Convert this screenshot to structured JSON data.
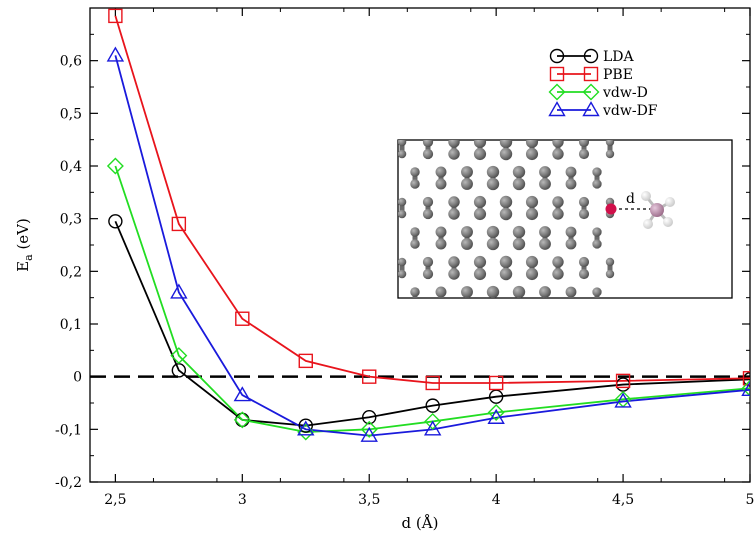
{
  "chart_data": {
    "type": "line",
    "title": "",
    "xlabel": "d (Å)",
    "ylabel_main": "E",
    "ylabel_sub": "a",
    "ylabel_unit": " (eV)",
    "xlim": [
      2.4,
      5.0
    ],
    "ylim": [
      -0.2,
      0.7
    ],
    "x_ticks": [
      2.5,
      3,
      3.5,
      4,
      4.5,
      5
    ],
    "x_tick_labels": [
      "2,5",
      "3",
      "3,5",
      "4",
      "4,5",
      "5"
    ],
    "y_ticks": [
      -0.2,
      -0.1,
      0,
      0.1,
      0.2,
      0.3,
      0.4,
      0.5,
      0.6
    ],
    "y_tick_labels": [
      "-0,2",
      "-0,1",
      "0",
      "0,1",
      "0,2",
      "0,3",
      "0,4",
      "0,5",
      "0,6"
    ],
    "reference_line": {
      "y": 0,
      "style": "dashed",
      "color": "#000000"
    },
    "grid": false,
    "legend_position": "top-right",
    "series": [
      {
        "name": "LDA",
        "color": "#000000",
        "marker": "circle",
        "x": [
          2.5,
          2.75,
          3.0,
          3.25,
          3.5,
          3.75,
          4.0,
          4.5,
          5.0
        ],
        "y": [
          0.295,
          0.012,
          -0.082,
          -0.093,
          -0.077,
          -0.055,
          -0.038,
          -0.015,
          -0.005
        ]
      },
      {
        "name": "PBE",
        "color": "#e8141c",
        "marker": "square",
        "x": [
          2.5,
          2.75,
          3.0,
          3.25,
          3.5,
          3.75,
          4.0,
          4.5,
          5.0
        ],
        "y": [
          0.685,
          0.29,
          0.11,
          0.03,
          0.0,
          -0.012,
          -0.012,
          -0.008,
          -0.003
        ]
      },
      {
        "name": "vdw-D",
        "color": "#22dd22",
        "marker": "diamond",
        "x": [
          2.5,
          2.75,
          3.0,
          3.25,
          3.5,
          3.75,
          4.0,
          4.5,
          5.0
        ],
        "y": [
          0.4,
          0.04,
          -0.082,
          -0.105,
          -0.1,
          -0.085,
          -0.068,
          -0.043,
          -0.022
        ]
      },
      {
        "name": "vdw-DF",
        "color": "#1a1adc",
        "marker": "triangle",
        "x": [
          2.5,
          2.75,
          3.0,
          3.25,
          3.5,
          3.75,
          4.0,
          4.5,
          5.0
        ],
        "y": [
          0.61,
          0.16,
          -0.035,
          -0.1,
          -0.112,
          -0.1,
          -0.078,
          -0.047,
          -0.025
        ]
      }
    ],
    "inset": {
      "label": "d"
    }
  }
}
